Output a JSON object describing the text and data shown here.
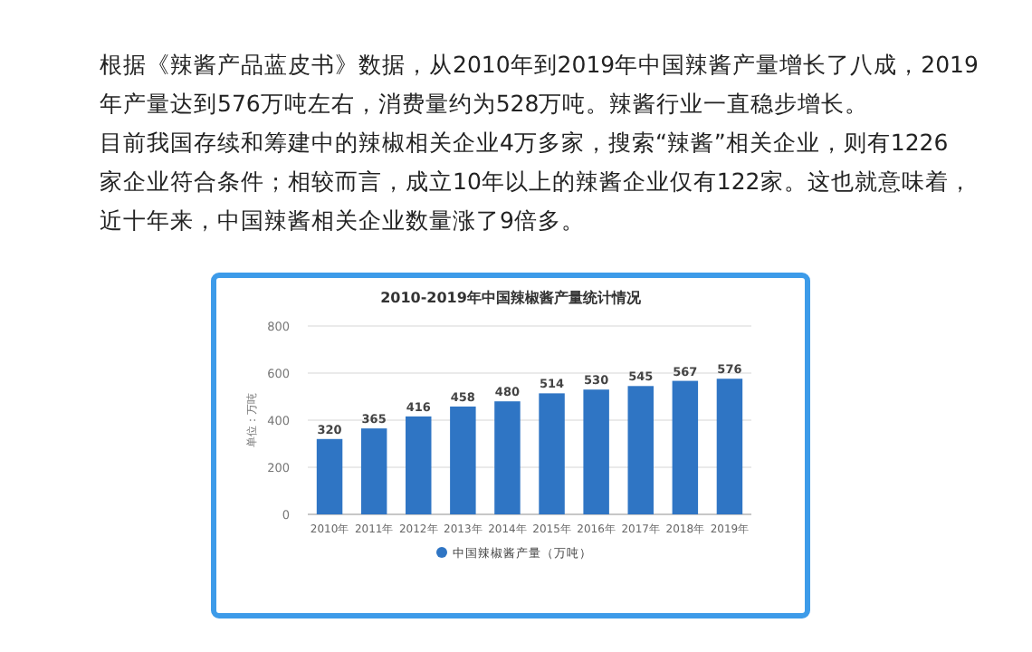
{
  "chart_data": {
    "type": "bar",
    "title": "2010-2019年中国辣椒酱产量统计情况",
    "ylabel": "单位：万吨",
    "annotations": [
      "根据《辣酱产品蓝皮书》数据，从2010年到2019年中国辣酱产量增长了八成，2019年产量达到576万吨左右，消费量约为528万吨。辣酱行业一直稳步增长。",
      "目前我国存续和筹建中的辣椒相关企业4万多家，搜索“辣酱”相关企业，则有1226家企业符合条件；相较而言，成立10年以上的辣酱企业仅有122家。这也就意味着，近十年来，中国辣酱相关企业数量涨了9倍多。"
    ],
    "categories": [
      "2010年",
      "2011年",
      "2012年",
      "2013年",
      "2014年",
      "2015年",
      "2016年",
      "2017年",
      "2018年",
      "2019年"
    ],
    "series": [
      {
        "name": "中国辣椒酱产量（万吨）",
        "color": "#2f75c4",
        "values": [
          320,
          365,
          416,
          458,
          480,
          514,
          530,
          545,
          567,
          576
        ]
      }
    ],
    "ylim": [
      0,
      800
    ],
    "yticks": [
      0,
      200,
      400,
      600,
      800
    ],
    "grid": "y",
    "legend": "bottom",
    "data_labels": true
  }
}
